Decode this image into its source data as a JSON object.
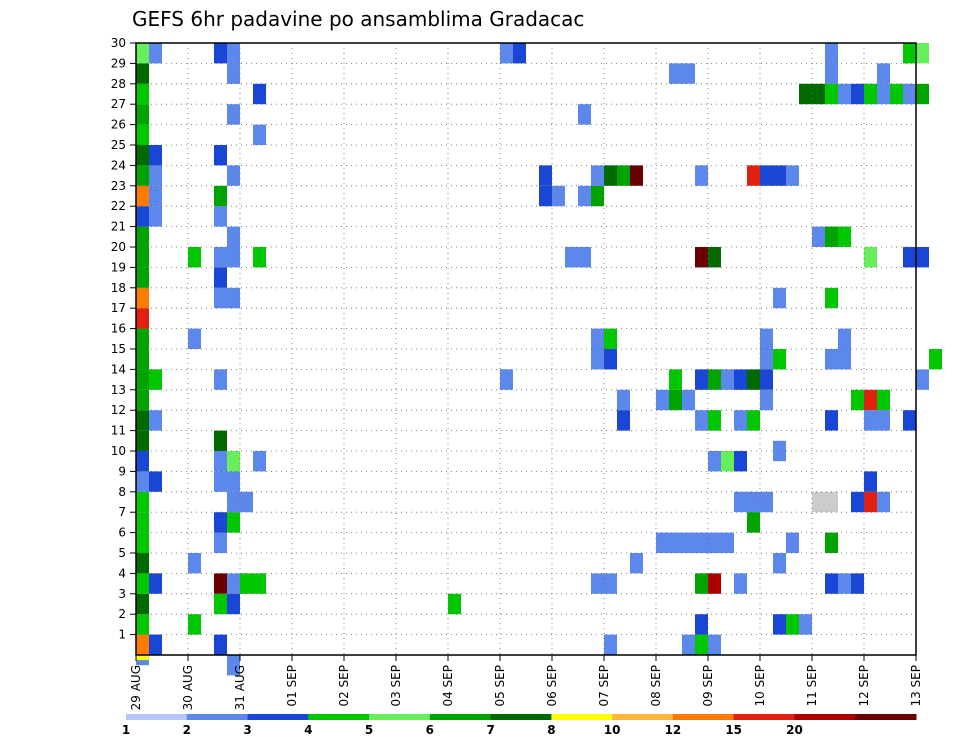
{
  "chart_data": {
    "type": "heatmap",
    "title": "GEFS 6hr padavine po ansamblima Gradacac",
    "y_ticks": [
      1,
      2,
      3,
      4,
      5,
      6,
      7,
      8,
      9,
      10,
      11,
      12,
      13,
      14,
      15,
      16,
      17,
      18,
      19,
      20,
      21,
      22,
      23,
      24,
      25,
      26,
      27,
      28,
      29,
      30
    ],
    "x_ticks": [
      "29 AUG",
      "30 AUG",
      "31 AUG",
      "01 SEP",
      "02 SEP",
      "03 SEP",
      "04 SEP",
      "05 SEP",
      "06 SEP",
      "07 SEP",
      "08 SEP",
      "09 SEP",
      "10 SEP",
      "11 SEP",
      "12 SEP",
      "13 SEP"
    ],
    "xlim_days": [
      0,
      15
    ],
    "ylim": [
      0,
      30
    ],
    "colorbar": {
      "labels": [
        "1",
        "2",
        "3",
        "4",
        "5",
        "6",
        "7",
        "8",
        "10",
        "12",
        "15",
        "20"
      ],
      "colors": [
        "#b3c6f5",
        "#5b88ea",
        "#1a46d6",
        "#00c700",
        "#66ef5a",
        "#00a300",
        "#006a00",
        "#ffff00",
        "#ffb43a",
        "#ff7a00",
        "#e02010",
        "#aa0000",
        "#6a0000"
      ]
    },
    "cells": [
      [
        0,
        0,
        1
      ],
      [
        0,
        0.25,
        7
      ],
      [
        0.25,
        0.5,
        2
      ],
      [
        0,
        0.5,
        9
      ],
      [
        0.25,
        0.5,
        2
      ],
      [
        0,
        1.5,
        3
      ],
      [
        0,
        2.5,
        6
      ],
      [
        0,
        3.5,
        3
      ],
      [
        0.25,
        3.5,
        2
      ],
      [
        0,
        4.5,
        6
      ],
      [
        0,
        5.5,
        3
      ],
      [
        0,
        6.5,
        3
      ],
      [
        0,
        7.5,
        3
      ],
      [
        0,
        8.5,
        1
      ],
      [
        0.25,
        8.5,
        2
      ],
      [
        0,
        9.5,
        2
      ],
      [
        0,
        10.5,
        6
      ],
      [
        0,
        11.5,
        6
      ],
      [
        0.25,
        11.5,
        1
      ],
      [
        0,
        12.5,
        5
      ],
      [
        0,
        13.5,
        5
      ],
      [
        0.25,
        13.5,
        3
      ],
      [
        0,
        14.5,
        5
      ],
      [
        0,
        15.5,
        5
      ],
      [
        0,
        16.5,
        10
      ],
      [
        0,
        17.5,
        9
      ],
      [
        0,
        18.5,
        5
      ],
      [
        0,
        19.5,
        5
      ],
      [
        0,
        20.5,
        5
      ],
      [
        0,
        21.5,
        2
      ],
      [
        0.25,
        21.5,
        1
      ],
      [
        0,
        22.5,
        9
      ],
      [
        0.25,
        22.5,
        1
      ],
      [
        0,
        23.5,
        5
      ],
      [
        0.25,
        23.5,
        1
      ],
      [
        0,
        24.5,
        6
      ],
      [
        0.25,
        24.5,
        2
      ],
      [
        0,
        25.5,
        3
      ],
      [
        0,
        26.5,
        5
      ],
      [
        0,
        27.5,
        3
      ],
      [
        0,
        28.5,
        6
      ],
      [
        0,
        29.5,
        4
      ],
      [
        0.25,
        29.5,
        1
      ],
      [
        1,
        1.5,
        3
      ],
      [
        1,
        4.5,
        1
      ],
      [
        1,
        15.5,
        1
      ],
      [
        1,
        19.5,
        3
      ],
      [
        1.5,
        0.5,
        2
      ],
      [
        1.5,
        3.5,
        12
      ],
      [
        1.75,
        3.5,
        1
      ],
      [
        2,
        3.5,
        3
      ],
      [
        1.5,
        2.5,
        3
      ],
      [
        1.75,
        2.5,
        2
      ],
      [
        1.5,
        5.5,
        1
      ],
      [
        1.5,
        6.5,
        2
      ],
      [
        1.75,
        6.5,
        3
      ],
      [
        1.5,
        8.5,
        1
      ],
      [
        1.75,
        8.5,
        1
      ],
      [
        1.5,
        9.5,
        1
      ],
      [
        1.75,
        9.5,
        4
      ],
      [
        1.5,
        10.5,
        6
      ],
      [
        1.75,
        7.5,
        1
      ],
      [
        1.5,
        13.5,
        1
      ],
      [
        1.5,
        17.5,
        1
      ],
      [
        1.75,
        17.5,
        1
      ],
      [
        1.5,
        18.5,
        2
      ],
      [
        1.5,
        19.5,
        1
      ],
      [
        1.75,
        19.5,
        1
      ],
      [
        1.75,
        20.5,
        1
      ],
      [
        1.5,
        21.5,
        1
      ],
      [
        1.5,
        22.5,
        5
      ],
      [
        1.75,
        23.5,
        1
      ],
      [
        1.5,
        24.5,
        2
      ],
      [
        1.75,
        26.5,
        1
      ],
      [
        1.75,
        28.5,
        1
      ],
      [
        1.5,
        29.5,
        2
      ],
      [
        1.75,
        29.5,
        1
      ],
      [
        1.75,
        -0.5,
        1
      ],
      [
        2.25,
        3.5,
        3
      ],
      [
        2.25,
        9.5,
        1
      ],
      [
        2.25,
        25.5,
        1
      ],
      [
        2.25,
        27.5,
        2
      ],
      [
        2.25,
        19.5,
        3
      ],
      [
        2.0,
        7.5,
        1
      ],
      [
        6.0,
        2.5,
        3
      ],
      [
        7.0,
        13.5,
        1
      ],
      [
        7.0,
        29.5,
        1
      ],
      [
        7.25,
        29.5,
        2
      ],
      [
        7.75,
        22.5,
        2
      ],
      [
        8.0,
        22.5,
        1
      ],
      [
        7.75,
        23.5,
        2
      ],
      [
        8.25,
        19.5,
        1
      ],
      [
        8.5,
        19.5,
        1
      ],
      [
        8.5,
        22.5,
        1
      ],
      [
        8.75,
        22.5,
        5
      ],
      [
        8.5,
        26.5,
        1
      ],
      [
        8.75,
        23.5,
        1
      ],
      [
        9.0,
        23.5,
        6
      ],
      [
        9.25,
        23.5,
        5
      ],
      [
        9.5,
        23.5,
        12
      ],
      [
        8.75,
        15.5,
        1
      ],
      [
        9.0,
        15.5,
        3
      ],
      [
        8.75,
        14.5,
        1
      ],
      [
        9.0,
        14.5,
        2
      ],
      [
        8.75,
        3.5,
        1
      ],
      [
        9.0,
        3.5,
        1
      ],
      [
        9.0,
        0.5,
        1
      ],
      [
        9.25,
        12.5,
        1
      ],
      [
        9.25,
        11.5,
        2
      ],
      [
        9.5,
        4.5,
        1
      ],
      [
        10.0,
        12.5,
        1
      ],
      [
        10.25,
        12.5,
        5
      ],
      [
        10.5,
        12.5,
        1
      ],
      [
        10.25,
        13.5,
        3
      ],
      [
        10.0,
        5.5,
        1
      ],
      [
        10.25,
        5.5,
        1
      ],
      [
        10.5,
        5.5,
        1
      ],
      [
        10.75,
        5.5,
        1
      ],
      [
        11.0,
        5.5,
        1
      ],
      [
        11.25,
        5.5,
        1
      ],
      [
        10.25,
        28.5,
        1
      ],
      [
        10.5,
        28.5,
        1
      ],
      [
        10.5,
        0.5,
        1
      ],
      [
        10.75,
        0.5,
        3
      ],
      [
        11.0,
        0.5,
        1
      ],
      [
        10.75,
        1.5,
        2
      ],
      [
        10.75,
        3.5,
        5
      ],
      [
        11.0,
        3.5,
        11
      ],
      [
        10.75,
        11.5,
        1
      ],
      [
        11.0,
        11.5,
        3
      ],
      [
        10.75,
        13.5,
        2
      ],
      [
        11.0,
        13.5,
        5
      ],
      [
        10.75,
        19.5,
        12
      ],
      [
        11.0,
        19.5,
        6
      ],
      [
        10.75,
        23.5,
        1
      ],
      [
        11.0,
        9.5,
        1
      ],
      [
        11.25,
        9.5,
        4
      ],
      [
        11.5,
        9.5,
        2
      ],
      [
        11.25,
        13.5,
        1
      ],
      [
        11.5,
        13.5,
        2
      ],
      [
        11.75,
        13.5,
        6
      ],
      [
        12.0,
        13.5,
        2
      ],
      [
        11.5,
        3.5,
        1
      ],
      [
        11.5,
        7.5,
        1
      ],
      [
        11.75,
        7.5,
        1
      ],
      [
        12.0,
        7.5,
        1
      ],
      [
        11.75,
        6.5,
        5
      ],
      [
        11.5,
        11.5,
        1
      ],
      [
        11.75,
        11.5,
        3
      ],
      [
        11.75,
        23.5,
        10
      ],
      [
        12.0,
        23.5,
        2
      ],
      [
        12.25,
        23.5,
        2
      ],
      [
        12.5,
        23.5,
        1
      ],
      [
        12.0,
        14.5,
        1
      ],
      [
        12.25,
        14.5,
        3
      ],
      [
        12.0,
        15.5,
        1
      ],
      [
        12.25,
        17.5,
        1
      ],
      [
        12.25,
        10.0,
        1
      ],
      [
        12.25,
        1.5,
        2
      ],
      [
        12.5,
        1.5,
        3
      ],
      [
        12.75,
        1.5,
        1
      ],
      [
        12.25,
        4.5,
        1
      ],
      [
        12.5,
        5.5,
        1
      ],
      [
        12.0,
        12.5,
        1
      ],
      [
        13.25,
        3.5,
        2
      ],
      [
        13.5,
        3.5,
        1
      ],
      [
        13.75,
        3.5,
        2
      ],
      [
        13.25,
        11.5,
        2
      ],
      [
        13.25,
        5.5,
        5
      ],
      [
        13.0,
        7.5,
        13
      ],
      [
        13.25,
        7.5,
        13
      ],
      [
        13.75,
        7.5,
        2
      ],
      [
        14.0,
        7.5,
        10
      ],
      [
        14.25,
        7.5,
        1
      ],
      [
        14.0,
        8.5,
        2
      ],
      [
        13.25,
        14.5,
        1
      ],
      [
        13.5,
        14.5,
        1
      ],
      [
        13.5,
        15.5,
        1
      ],
      [
        13.25,
        17.5,
        3
      ],
      [
        13.0,
        20.5,
        1
      ],
      [
        13.25,
        20.5,
        5
      ],
      [
        13.5,
        20.5,
        3
      ],
      [
        14.0,
        19.5,
        4
      ],
      [
        13.25,
        28.5,
        1
      ],
      [
        13.25,
        29.5,
        1
      ],
      [
        12.75,
        27.5,
        6
      ],
      [
        13.0,
        27.5,
        6
      ],
      [
        13.25,
        27.5,
        3
      ],
      [
        13.5,
        27.5,
        1
      ],
      [
        13.75,
        27.5,
        2
      ],
      [
        14.0,
        27.5,
        3
      ],
      [
        14.25,
        27.5,
        1
      ],
      [
        14.5,
        27.5,
        3
      ],
      [
        14.75,
        27.5,
        1
      ],
      [
        15.0,
        27.5,
        5
      ],
      [
        13.75,
        12.5,
        3
      ],
      [
        14.0,
        12.5,
        10
      ],
      [
        14.25,
        12.5,
        3
      ],
      [
        14.0,
        11.5,
        1
      ],
      [
        14.25,
        11.5,
        1
      ],
      [
        14.75,
        11.5,
        2
      ],
      [
        14.75,
        19.5,
        2
      ],
      [
        15.0,
        19.5,
        2
      ],
      [
        15.0,
        13.5,
        1
      ],
      [
        15.25,
        14.5,
        3
      ],
      [
        14.75,
        29.5,
        3
      ],
      [
        15.0,
        29.5,
        4
      ],
      [
        14.25,
        28.5,
        1
      ]
    ]
  }
}
